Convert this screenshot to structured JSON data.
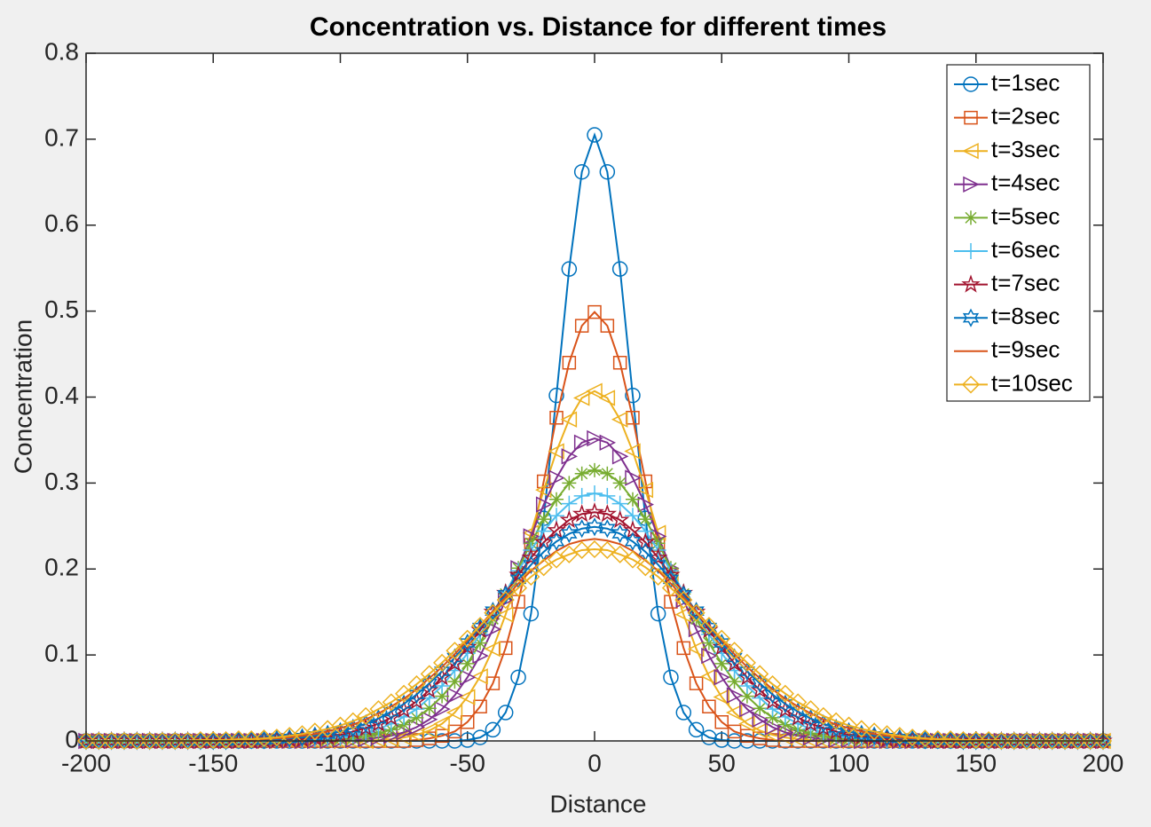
{
  "chart_data": {
    "type": "line",
    "title": "Concentration vs. Distance for different times",
    "x_label": "Distance",
    "y_label": "Concentration",
    "x": [
      -200,
      -195,
      -190,
      -185,
      -180,
      -175,
      -170,
      -165,
      -160,
      -155,
      -150,
      -145,
      -140,
      -135,
      -130,
      -125,
      -120,
      -115,
      -110,
      -105,
      -100,
      -95,
      -90,
      -85,
      -80,
      -75,
      -70,
      -65,
      -60,
      -55,
      -50,
      -45,
      -40,
      -35,
      -30,
      -25,
      -20,
      -15,
      -10,
      -5,
      0,
      5,
      10,
      15,
      20,
      25,
      30,
      35,
      40,
      45,
      50,
      55,
      60,
      65,
      70,
      75,
      80,
      85,
      90,
      95,
      100,
      105,
      110,
      115,
      120,
      125,
      130,
      135,
      140,
      145,
      150,
      155,
      160,
      165,
      170,
      175,
      180,
      185,
      190,
      195,
      200
    ],
    "xlim": [
      -200,
      200
    ],
    "xticks": [
      -200,
      -150,
      -100,
      -50,
      0,
      50,
      100,
      150,
      200
    ],
    "ylim": [
      0,
      0.8
    ],
    "yticks": [
      0,
      0.1,
      0.2,
      0.3,
      0.4,
      0.5,
      0.6,
      0.7,
      0.8
    ],
    "grid": false,
    "legend": "northeast",
    "series": [
      {
        "name": "t=1sec",
        "color": "#0072BD",
        "marker": "circle",
        "values": [
          0,
          0,
          0,
          0,
          0,
          0,
          0,
          0,
          0,
          0,
          0,
          0,
          0,
          0,
          0,
          0,
          0,
          0,
          0,
          0,
          0,
          0,
          0,
          0,
          0,
          0,
          0,
          0,
          0,
          0,
          0.001,
          0.004,
          0.013,
          0.033,
          0.074,
          0.148,
          0.259,
          0.402,
          0.549,
          0.662,
          0.705,
          0.662,
          0.549,
          0.402,
          0.259,
          0.148,
          0.074,
          0.033,
          0.013,
          0.004,
          0.001,
          0,
          0,
          0,
          0,
          0,
          0,
          0,
          0,
          0,
          0,
          0,
          0,
          0,
          0,
          0,
          0,
          0,
          0,
          0,
          0,
          0,
          0,
          0,
          0,
          0,
          0,
          0,
          0,
          0,
          0
        ]
      },
      {
        "name": "t=2sec",
        "color": "#D95319",
        "marker": "square",
        "values": [
          0,
          0,
          0,
          0,
          0,
          0,
          0,
          0,
          0,
          0,
          0,
          0,
          0,
          0,
          0,
          0,
          0,
          0,
          0,
          0,
          0,
          0,
          0,
          0,
          0,
          0,
          0.001,
          0.003,
          0.006,
          0.011,
          0.022,
          0.04,
          0.067,
          0.108,
          0.162,
          0.228,
          0.302,
          0.376,
          0.44,
          0.483,
          0.499,
          0.483,
          0.44,
          0.376,
          0.302,
          0.228,
          0.162,
          0.108,
          0.067,
          0.04,
          0.022,
          0.011,
          0.006,
          0.003,
          0.001,
          0,
          0,
          0,
          0,
          0,
          0,
          0,
          0,
          0,
          0,
          0,
          0,
          0,
          0,
          0,
          0,
          0,
          0,
          0,
          0,
          0,
          0,
          0,
          0,
          0,
          0
        ]
      },
      {
        "name": "t=3sec",
        "color": "#EDB120",
        "marker": "triangle-left",
        "values": [
          0,
          0,
          0,
          0,
          0,
          0,
          0,
          0,
          0,
          0,
          0,
          0,
          0,
          0,
          0,
          0,
          0,
          0,
          0,
          0,
          0,
          0,
          0,
          0.001,
          0.002,
          0.004,
          0.007,
          0.012,
          0.02,
          0.033,
          0.051,
          0.075,
          0.107,
          0.147,
          0.192,
          0.242,
          0.292,
          0.337,
          0.374,
          0.399,
          0.407,
          0.399,
          0.374,
          0.337,
          0.292,
          0.242,
          0.192,
          0.147,
          0.107,
          0.075,
          0.051,
          0.033,
          0.02,
          0.012,
          0.007,
          0.004,
          0.002,
          0.001,
          0,
          0,
          0,
          0,
          0,
          0,
          0,
          0,
          0,
          0,
          0,
          0,
          0,
          0,
          0,
          0,
          0,
          0,
          0,
          0,
          0,
          0,
          0
        ]
      },
      {
        "name": "t=4sec",
        "color": "#7E2F8E",
        "marker": "triangle-right",
        "values": [
          0,
          0,
          0,
          0,
          0,
          0,
          0,
          0,
          0,
          0,
          0,
          0,
          0,
          0,
          0,
          0,
          0,
          0,
          0,
          0,
          0.001,
          0.001,
          0.002,
          0.004,
          0.006,
          0.01,
          0.016,
          0.025,
          0.037,
          0.053,
          0.074,
          0.099,
          0.13,
          0.164,
          0.201,
          0.238,
          0.275,
          0.306,
          0.331,
          0.347,
          0.352,
          0.347,
          0.331,
          0.306,
          0.275,
          0.238,
          0.201,
          0.164,
          0.13,
          0.099,
          0.074,
          0.053,
          0.037,
          0.025,
          0.016,
          0.01,
          0.006,
          0.004,
          0.002,
          0.001,
          0.001,
          0,
          0,
          0,
          0,
          0,
          0,
          0,
          0,
          0,
          0,
          0,
          0,
          0,
          0,
          0,
          0,
          0,
          0,
          0,
          0
        ]
      },
      {
        "name": "t=5sec",
        "color": "#77AC30",
        "marker": "asterisk",
        "values": [
          0,
          0,
          0,
          0,
          0,
          0,
          0,
          0,
          0,
          0,
          0,
          0,
          0,
          0,
          0,
          0,
          0,
          0,
          0.001,
          0.001,
          0.002,
          0.003,
          0.005,
          0.009,
          0.013,
          0.019,
          0.027,
          0.038,
          0.052,
          0.069,
          0.09,
          0.114,
          0.142,
          0.171,
          0.201,
          0.23,
          0.258,
          0.281,
          0.3,
          0.311,
          0.315,
          0.311,
          0.3,
          0.281,
          0.258,
          0.23,
          0.201,
          0.171,
          0.142,
          0.114,
          0.09,
          0.069,
          0.052,
          0.038,
          0.027,
          0.019,
          0.013,
          0.009,
          0.005,
          0.003,
          0.002,
          0.001,
          0.001,
          0,
          0,
          0,
          0,
          0,
          0,
          0,
          0,
          0,
          0,
          0,
          0,
          0,
          0,
          0,
          0,
          0,
          0
        ]
      },
      {
        "name": "t=6sec",
        "color": "#4DBEEE",
        "marker": "plus",
        "values": [
          0,
          0,
          0,
          0,
          0,
          0,
          0,
          0,
          0,
          0,
          0,
          0,
          0,
          0,
          0,
          0,
          0.001,
          0.001,
          0.002,
          0.003,
          0.004,
          0.007,
          0.01,
          0.014,
          0.02,
          0.028,
          0.037,
          0.05,
          0.064,
          0.082,
          0.102,
          0.124,
          0.148,
          0.173,
          0.198,
          0.222,
          0.244,
          0.262,
          0.276,
          0.285,
          0.288,
          0.285,
          0.276,
          0.262,
          0.244,
          0.222,
          0.198,
          0.173,
          0.148,
          0.124,
          0.102,
          0.082,
          0.064,
          0.05,
          0.037,
          0.028,
          0.02,
          0.014,
          0.01,
          0.007,
          0.004,
          0.003,
          0.002,
          0.001,
          0.001,
          0,
          0,
          0,
          0,
          0,
          0,
          0,
          0,
          0,
          0,
          0,
          0,
          0,
          0,
          0,
          0
        ]
      },
      {
        "name": "t=7sec",
        "color": "#A2142F",
        "marker": "pentagram",
        "values": [
          0,
          0,
          0,
          0,
          0,
          0,
          0,
          0,
          0,
          0,
          0,
          0,
          0,
          0,
          0.001,
          0.001,
          0.002,
          0.002,
          0.004,
          0.005,
          0.007,
          0.011,
          0.015,
          0.02,
          0.027,
          0.036,
          0.046,
          0.059,
          0.074,
          0.09,
          0.109,
          0.129,
          0.15,
          0.172,
          0.193,
          0.213,
          0.231,
          0.245,
          0.257,
          0.264,
          0.266,
          0.264,
          0.257,
          0.245,
          0.231,
          0.213,
          0.193,
          0.172,
          0.15,
          0.129,
          0.109,
          0.09,
          0.074,
          0.059,
          0.046,
          0.036,
          0.027,
          0.02,
          0.015,
          0.011,
          0.007,
          0.005,
          0.004,
          0.002,
          0.002,
          0.001,
          0.001,
          0,
          0,
          0,
          0,
          0,
          0,
          0,
          0,
          0,
          0,
          0,
          0,
          0,
          0
        ]
      },
      {
        "name": "t=8sec",
        "color": "#0072BD",
        "marker": "hexagram",
        "values": [
          0,
          0,
          0,
          0,
          0,
          0,
          0,
          0,
          0,
          0,
          0,
          0,
          0.001,
          0.001,
          0.001,
          0.002,
          0.003,
          0.004,
          0.006,
          0.008,
          0.011,
          0.015,
          0.02,
          0.026,
          0.034,
          0.043,
          0.054,
          0.067,
          0.081,
          0.097,
          0.114,
          0.132,
          0.151,
          0.17,
          0.188,
          0.205,
          0.22,
          0.232,
          0.241,
          0.247,
          0.249,
          0.247,
          0.241,
          0.232,
          0.22,
          0.205,
          0.188,
          0.17,
          0.151,
          0.132,
          0.114,
          0.097,
          0.081,
          0.067,
          0.054,
          0.043,
          0.034,
          0.026,
          0.02,
          0.015,
          0.011,
          0.008,
          0.006,
          0.004,
          0.003,
          0.002,
          0.001,
          0.001,
          0.001,
          0,
          0,
          0,
          0,
          0,
          0,
          0,
          0,
          0,
          0,
          0,
          0
        ]
      },
      {
        "name": "t=9sec",
        "color": "#D95319",
        "marker": "none",
        "values": [
          0,
          0,
          0,
          0,
          0,
          0,
          0,
          0,
          0,
          0,
          0,
          0.001,
          0.001,
          0.001,
          0.002,
          0.003,
          0.004,
          0.006,
          0.008,
          0.011,
          0.015,
          0.019,
          0.025,
          0.032,
          0.04,
          0.049,
          0.06,
          0.073,
          0.086,
          0.101,
          0.117,
          0.134,
          0.151,
          0.167,
          0.183,
          0.198,
          0.21,
          0.221,
          0.229,
          0.233,
          0.235,
          0.233,
          0.229,
          0.221,
          0.21,
          0.198,
          0.183,
          0.167,
          0.151,
          0.134,
          0.117,
          0.101,
          0.086,
          0.073,
          0.06,
          0.049,
          0.04,
          0.032,
          0.025,
          0.019,
          0.015,
          0.011,
          0.008,
          0.006,
          0.004,
          0.003,
          0.002,
          0.001,
          0.001,
          0.001,
          0,
          0,
          0,
          0,
          0,
          0,
          0,
          0,
          0,
          0,
          0
        ]
      },
      {
        "name": "t=10sec",
        "color": "#EDB120",
        "marker": "diamond",
        "values": [
          0,
          0,
          0,
          0,
          0,
          0,
          0,
          0,
          0,
          0.001,
          0.001,
          0.001,
          0.002,
          0.002,
          0.003,
          0.004,
          0.006,
          0.008,
          0.011,
          0.014,
          0.018,
          0.023,
          0.029,
          0.037,
          0.045,
          0.055,
          0.066,
          0.078,
          0.091,
          0.105,
          0.119,
          0.134,
          0.149,
          0.164,
          0.178,
          0.191,
          0.202,
          0.211,
          0.217,
          0.222,
          0.223,
          0.222,
          0.217,
          0.211,
          0.202,
          0.191,
          0.178,
          0.164,
          0.149,
          0.134,
          0.119,
          0.105,
          0.091,
          0.078,
          0.066,
          0.055,
          0.045,
          0.037,
          0.029,
          0.023,
          0.018,
          0.014,
          0.011,
          0.008,
          0.006,
          0.004,
          0.003,
          0.002,
          0.002,
          0.001,
          0.001,
          0.001,
          0,
          0,
          0,
          0,
          0,
          0,
          0,
          0,
          0
        ]
      }
    ]
  }
}
